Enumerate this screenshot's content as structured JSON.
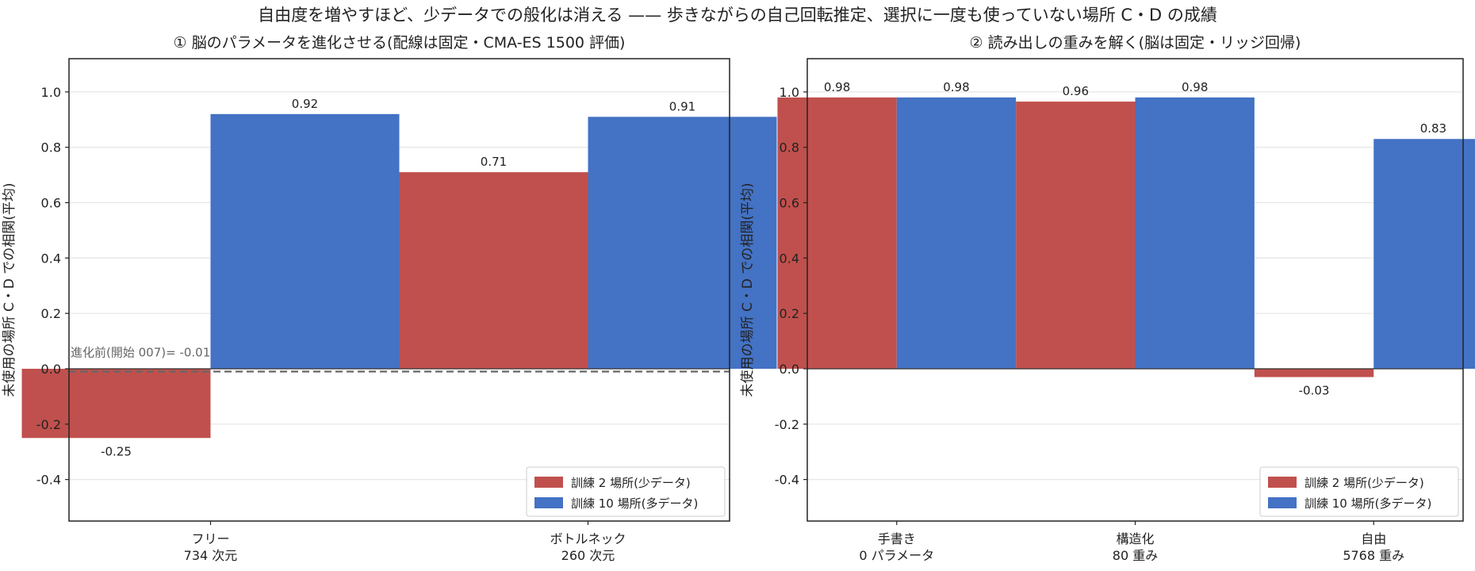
{
  "suptitle": "自由度を増やすほど、少データでの般化は消える —— 歩きながらの自己回転推定、選択に一度も使っていない場所 C・D の成績",
  "chart_data": [
    {
      "type": "bar",
      "title": "① 脳のパラメータを進化させる(配線は固定・CMA-ES 1500 評価)",
      "ylabel": "未使用の場所 C・D での相関(平均)",
      "ylim": [
        -0.55,
        1.12
      ],
      "yticks": [
        -0.4,
        -0.2,
        0.0,
        0.2,
        0.4,
        0.6,
        0.8,
        1.0
      ],
      "ytick_labels": [
        "-0.4",
        "-0.2",
        "0.0",
        "0.2",
        "0.4",
        "0.6",
        "0.8",
        "1.0"
      ],
      "grid": true,
      "legend_position": "lower-right",
      "categories": [
        [
          "フリー",
          "734 次元"
        ],
        [
          "ボトルネック",
          "260 次元"
        ]
      ],
      "series": [
        {
          "name": "訓練 2 場所(少データ)",
          "color": "#c0504d",
          "values": [
            -0.25,
            0.71
          ],
          "labels": [
            "-0.25",
            "0.71"
          ]
        },
        {
          "name": "訓練 10 場所(多データ)",
          "color": "#4472c4",
          "values": [
            0.92,
            0.91
          ],
          "labels": [
            "0.92",
            "0.91"
          ]
        }
      ],
      "reference_line": {
        "value": -0.01,
        "label": "進化前(開始 007)= -0.01",
        "color": "#666666"
      }
    },
    {
      "type": "bar",
      "title": "② 読み出しの重みを解く(脳は固定・リッジ回帰)",
      "ylabel": "未使用の場所 C・D での相関(平均)",
      "ylim": [
        -0.55,
        1.12
      ],
      "yticks": [
        -0.4,
        -0.2,
        0.0,
        0.2,
        0.4,
        0.6,
        0.8,
        1.0
      ],
      "ytick_labels": [
        "-0.4",
        "-0.2",
        "0.0",
        "0.2",
        "0.4",
        "0.6",
        "0.8",
        "1.0"
      ],
      "grid": true,
      "legend_position": "lower-right",
      "categories": [
        [
          "手書き",
          "0 パラメータ"
        ],
        [
          "構造化",
          "80 重み"
        ],
        [
          "自由",
          "5768 重み"
        ]
      ],
      "series": [
        {
          "name": "訓練 2 場所(少データ)",
          "color": "#c0504d",
          "values": [
            0.98,
            0.965,
            -0.03
          ],
          "labels": [
            "0.98",
            "0.96",
            "-0.03"
          ]
        },
        {
          "name": "訓練 10 場所(多データ)",
          "color": "#4472c4",
          "values": [
            0.98,
            0.98,
            0.83
          ],
          "labels": [
            "0.98",
            "0.98",
            "0.83"
          ]
        }
      ]
    }
  ]
}
